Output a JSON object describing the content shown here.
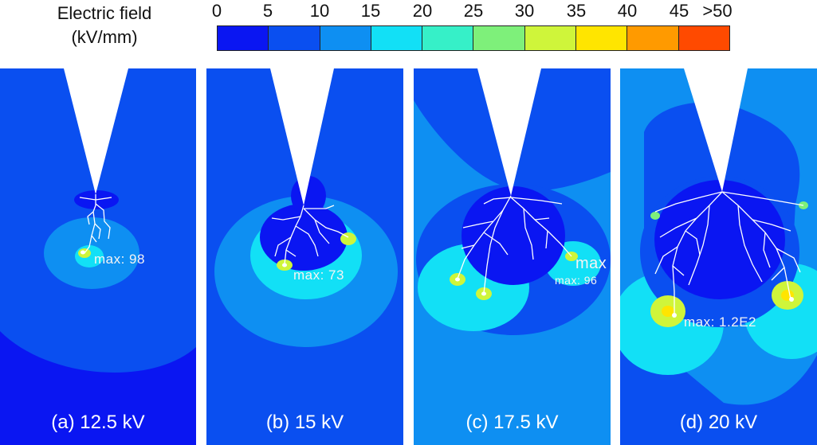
{
  "legend": {
    "title_line1": "Electric field",
    "title_line2": "(kV/mm)",
    "ticks": [
      "0",
      "5",
      "10",
      "15",
      "20",
      "25",
      "30",
      "35",
      "40",
      "45",
      ">50"
    ],
    "colors": [
      "#0a16f2",
      "#0a4ff0",
      "#0e8ff2",
      "#12e0f6",
      "#36f0c8",
      "#7ef07a",
      "#cff53a",
      "#ffe500",
      "#ff9a00",
      "#ff4a00"
    ]
  },
  "panels": [
    {
      "caption": "(a) 12.5 kV",
      "max_label": "max: 98"
    },
    {
      "caption": "(b) 15 kV",
      "max_label": "max: 73"
    },
    {
      "caption": "(c) 17.5 kV",
      "max_label": "max",
      "max_label_2": "max: 96"
    },
    {
      "caption": "(d) 20 kV",
      "max_label": "max: 1.2E2"
    }
  ]
}
